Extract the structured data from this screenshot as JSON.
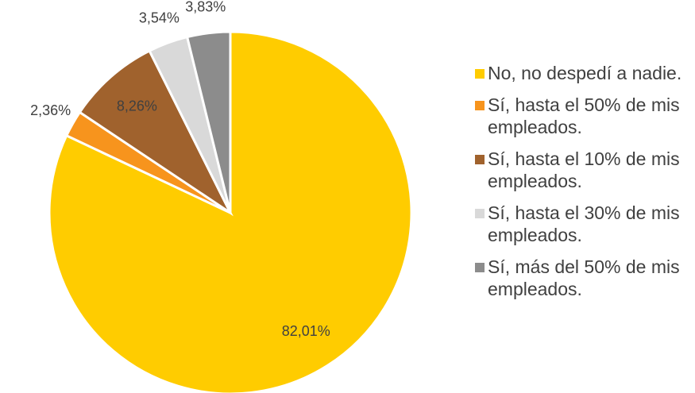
{
  "chart_data": {
    "type": "pie",
    "categories": [
      "No, no despedí a nadie.",
      "Sí, hasta el 50% de mis empleados.",
      "Sí, hasta el 10% de mis empleados.",
      "Sí, hasta el 30% de mis empleados.",
      "Sí, más del 50% de mis empleados."
    ],
    "values": [
      82.01,
      2.36,
      8.26,
      3.54,
      3.83
    ],
    "value_labels": [
      "82,01%",
      "2,36%",
      "8,26%",
      "3,54%",
      "3,83%"
    ],
    "colors": [
      "#FFCC00",
      "#F7941D",
      "#A0622D",
      "#D9D9D9",
      "#8C8C8C"
    ],
    "legend": "right"
  }
}
